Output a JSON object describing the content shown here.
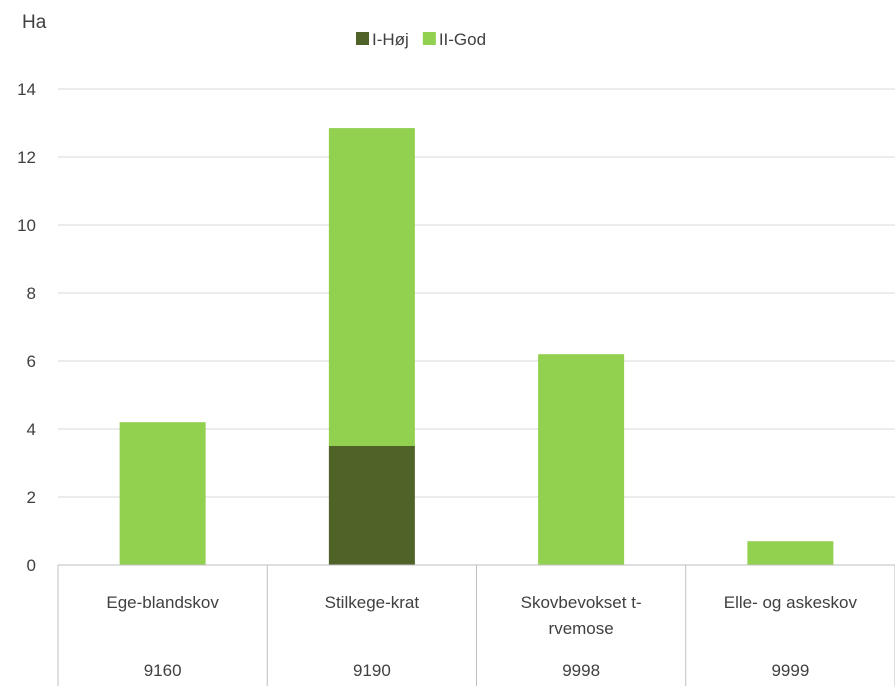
{
  "chart_data": {
    "type": "bar",
    "stacked": true,
    "y_unit_label": "Ha",
    "ylim": [
      0,
      14
    ],
    "yticks": [
      0,
      2,
      4,
      6,
      8,
      10,
      12,
      14
    ],
    "grid": true,
    "legend_position": "top",
    "categories": [
      {
        "name_lines": [
          "Ege-blandskov"
        ],
        "code": "9160"
      },
      {
        "name_lines": [
          "Stilkege-krat"
        ],
        "code": "9190"
      },
      {
        "name_lines": [
          "Skovbevokset t-",
          "rvemose"
        ],
        "code": "9998"
      },
      {
        "name_lines": [
          "Elle- og askeskov"
        ],
        "code": "9999"
      }
    ],
    "series": [
      {
        "name": "I-Høj",
        "color": "#4f6228",
        "values": [
          0,
          3.5,
          0,
          0
        ]
      },
      {
        "name": "II-God",
        "color": "#92d050",
        "values": [
          4.2,
          9.35,
          6.2,
          0.7
        ]
      }
    ]
  }
}
